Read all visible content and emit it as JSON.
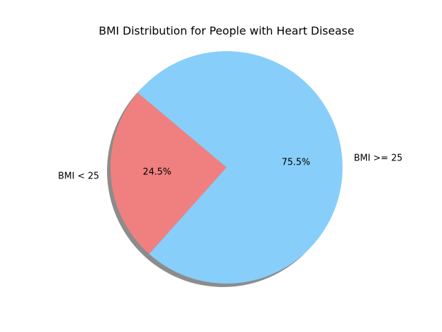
{
  "chart_data": {
    "type": "pie",
    "title": "BMI Distribution for People with Heart Disease",
    "start_angle_deg": 140,
    "shadow": true,
    "slices": [
      {
        "label": "BMI < 25",
        "value": 24.5,
        "pct_label": "24.5%",
        "color": "#F08080"
      },
      {
        "label": "BMI >= 25",
        "value": 75.5,
        "pct_label": "75.5%",
        "color": "#87CEFA"
      }
    ]
  }
}
